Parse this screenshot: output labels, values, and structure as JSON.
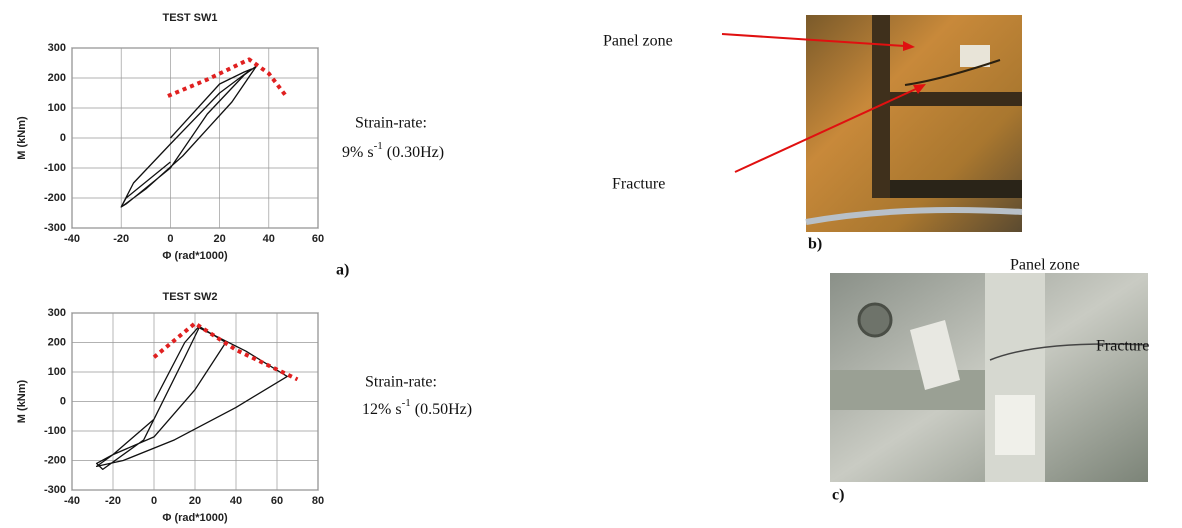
{
  "chart_data": [
    {
      "type": "line",
      "title": "TEST SW1",
      "x_label": "Φ (rad*1000)",
      "y_label": "M (kNm)",
      "xlim": [
        -40,
        60
      ],
      "xticks": [
        -40,
        -20,
        0,
        20,
        40,
        60
      ],
      "ylim": [
        -300,
        300
      ],
      "yticks": [
        -300,
        -200,
        -100,
        0,
        100,
        200,
        300
      ],
      "grid": true,
      "series": [
        {
          "color": "#111111",
          "style": "solid",
          "x": [
            0,
            20,
            30,
            33,
            20,
            0,
            -15,
            -20,
            -18,
            0,
            15,
            30,
            35,
            25,
            5,
            -10,
            -20,
            -18,
            0
          ],
          "values": [
            0,
            180,
            220,
            230,
            150,
            -20,
            -150,
            -230,
            -220,
            -100,
            80,
            210,
            240,
            120,
            -60,
            -170,
            -230,
            -200,
            -80
          ]
        },
        {
          "color": "#e02020",
          "style": "dotted",
          "x": [
            -1,
            15,
            32,
            40,
            47
          ],
          "values": [
            140,
            195,
            262,
            215,
            140
          ]
        }
      ]
    },
    {
      "type": "line",
      "title": "TEST SW2",
      "x_label": "Φ (rad*1000)",
      "y_label": "M (kNm)",
      "xlim": [
        -40,
        80
      ],
      "xticks": [
        -40,
        -20,
        0,
        20,
        40,
        60,
        80
      ],
      "ylim": [
        -300,
        300
      ],
      "yticks": [
        -300,
        -200,
        -100,
        0,
        100,
        200,
        300
      ],
      "grid": true,
      "series": [
        {
          "color": "#111111",
          "style": "solid",
          "x": [
            0,
            15,
            22,
            35,
            20,
            0,
            -20,
            -28,
            -25,
            -5,
            15,
            22,
            45,
            65,
            40,
            10,
            -15,
            -28,
            -20,
            0
          ],
          "values": [
            0,
            200,
            255,
            200,
            40,
            -120,
            -180,
            -210,
            -230,
            -130,
            150,
            250,
            170,
            85,
            -20,
            -130,
            -200,
            -220,
            -180,
            -60
          ]
        },
        {
          "color": "#e02020",
          "style": "dotted",
          "x": [
            0,
            20,
            40,
            70
          ],
          "values": [
            150,
            265,
            175,
            75
          ]
        }
      ]
    }
  ],
  "labels": {
    "a": "a)",
    "b": "b)",
    "c": "c)",
    "rate1": {
      "head": "Strain-rate:",
      "main": "9% s",
      "sup": "-1",
      "tail": " (0.30Hz)"
    },
    "rate2": {
      "head": "Strain-rate:",
      "main": "12% s",
      "sup": "-1",
      "tail": " (0.50Hz)"
    },
    "b_panel": "Panel zone",
    "b_fracture": "Fracture",
    "c_panel": "Panel zone",
    "c_fracture": "Fracture"
  }
}
